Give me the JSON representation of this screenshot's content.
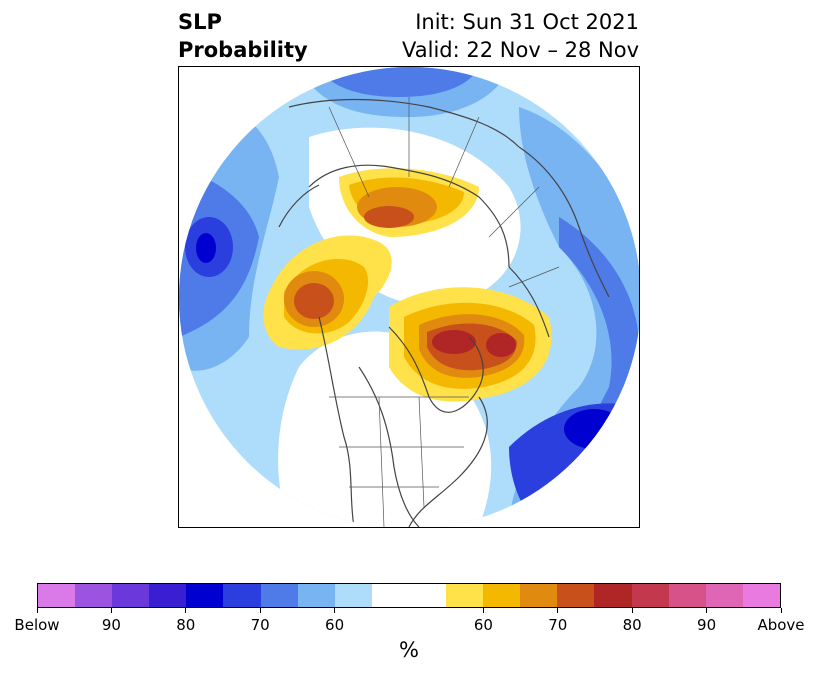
{
  "title": {
    "left_line1": "SLP",
    "left_line2": "Probability",
    "right_line1": "Init: Sun 31 Oct 2021",
    "right_line2": "Valid: 22 Nov – 28 Nov"
  },
  "map": {
    "projection": "north-polar-stereographic",
    "colors": {
      "below_40": "#aedcfb",
      "below_50": "#78b4f2",
      "below_60": "#4f7be8",
      "below_70": "#2b3fdf",
      "below_80": "#0000d0",
      "neutral": "#ffffff",
      "above_40": "#ffe14a",
      "above_50": "#f5b800",
      "above_60": "#e08a10",
      "above_70": "#c8501a",
      "above_80": "#b02525",
      "land_lines": "#444444"
    }
  },
  "colorbar": {
    "segments": [
      "#d97ae8",
      "#9b53e0",
      "#6b38dc",
      "#3a1ed2",
      "#0000d0",
      "#2b3fdf",
      "#4f7be8",
      "#78b4f2",
      "#aedcfb",
      "#ffffff",
      "#ffffff",
      "#ffe14a",
      "#f5b800",
      "#e08a10",
      "#c8501a",
      "#b02525",
      "#c4384d",
      "#d65289",
      "#de66b4",
      "#e97adf"
    ],
    "tick_labels": [
      "Below",
      "90",
      "80",
      "70",
      "60",
      "60",
      "70",
      "80",
      "90",
      "Above"
    ],
    "unit": "%"
  }
}
